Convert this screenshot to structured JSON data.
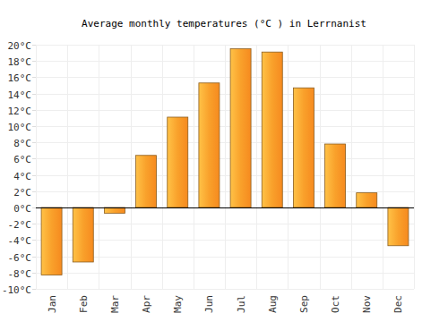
{
  "chart_data": {
    "type": "bar",
    "title": "Average monthly temperatures (°C ) in Lerrnanist",
    "categories": [
      "Jan",
      "Feb",
      "Mar",
      "Apr",
      "May",
      "Jun",
      "Jul",
      "Aug",
      "Sep",
      "Oct",
      "Nov",
      "Dec"
    ],
    "values": [
      -8.3,
      -6.7,
      -0.7,
      6.4,
      11.1,
      15.3,
      19.5,
      19.1,
      14.7,
      7.8,
      1.8,
      -4.7
    ],
    "color": "#f9a12b",
    "ylim": [
      -10,
      20
    ],
    "yticks": [
      {
        "value": -10,
        "label": "-10°C"
      },
      {
        "value": -8,
        "label": "-8°C"
      },
      {
        "value": -6,
        "label": "-6°C"
      },
      {
        "value": -4,
        "label": "-4°C"
      },
      {
        "value": -2,
        "label": "-2°C"
      },
      {
        "value": 0,
        "label": "0°C"
      },
      {
        "value": 2,
        "label": "2°C"
      },
      {
        "value": 4,
        "label": "4°C"
      },
      {
        "value": 6,
        "label": "6°C"
      },
      {
        "value": 8,
        "label": "8°C"
      },
      {
        "value": 10,
        "label": "10°C"
      },
      {
        "value": 12,
        "label": "12°C"
      },
      {
        "value": 14,
        "label": "14°C"
      },
      {
        "value": 16,
        "label": "16°C"
      },
      {
        "value": 18,
        "label": "18°C"
      },
      {
        "value": 20,
        "label": "20°C"
      }
    ],
    "grid": true
  }
}
